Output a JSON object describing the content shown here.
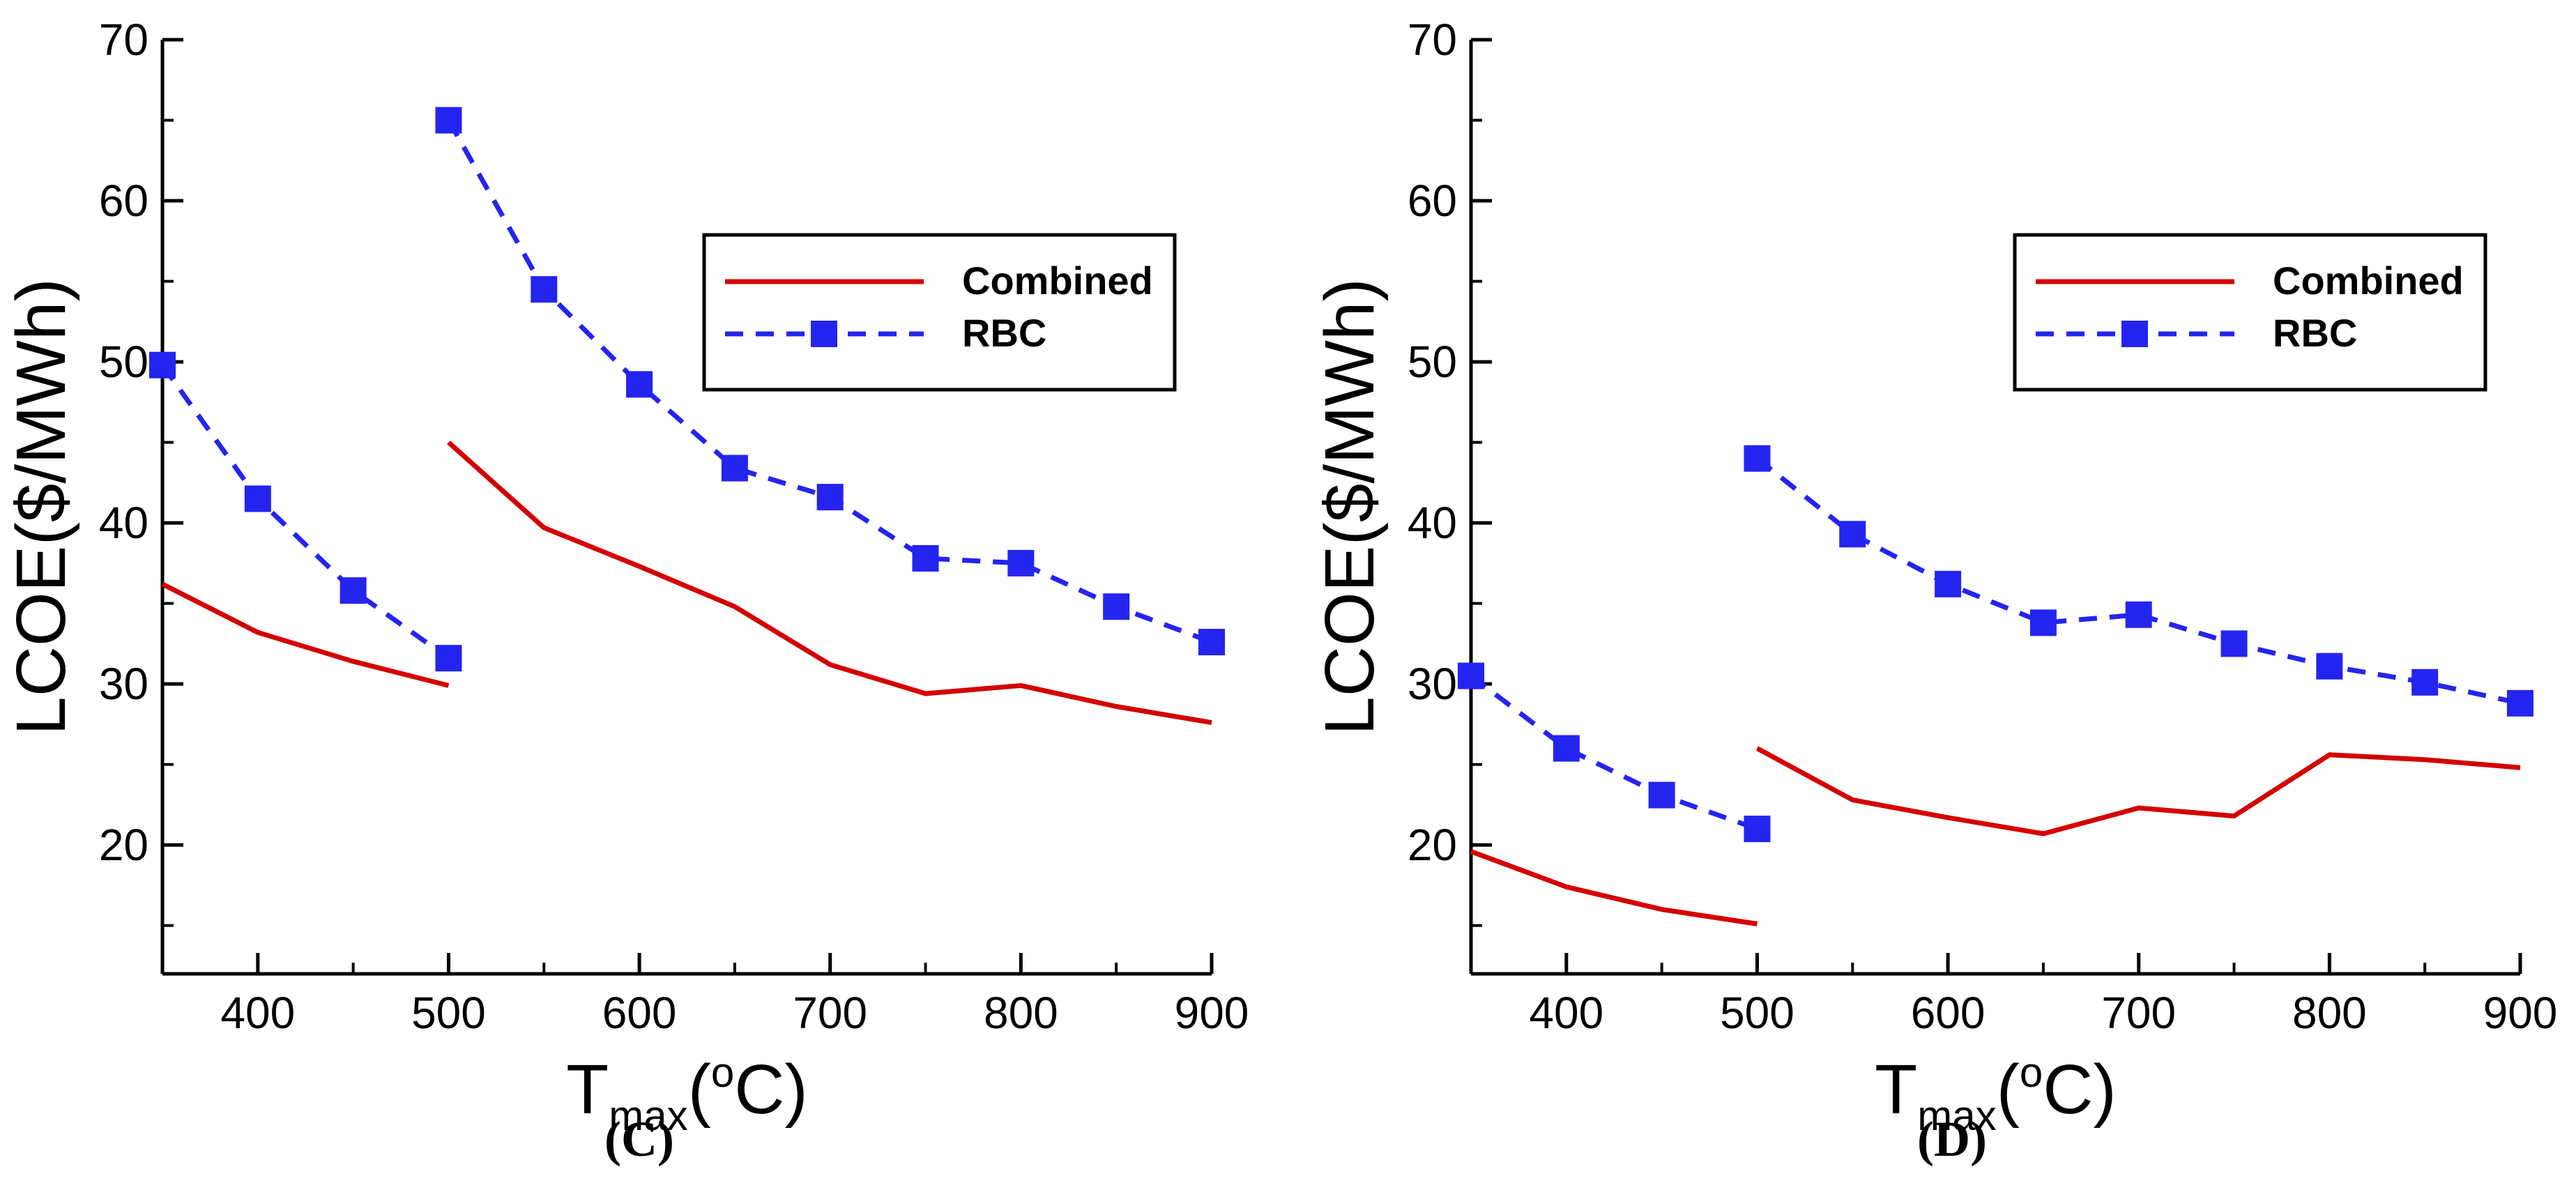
{
  "chart_data": [
    {
      "type": "line",
      "panel_label": "(C)",
      "xlabel_main": "T",
      "xlabel_sub": "max",
      "xlabel_unit_open": "(",
      "xlabel_unit_sup": "o",
      "xlabel_unit_close": "C)",
      "ylabel": "LCOE($/MWh)",
      "xlim": [
        350,
        900
      ],
      "ylim": [
        12,
        70
      ],
      "xticks": [
        400,
        500,
        600,
        700,
        800,
        900
      ],
      "yticks": [
        20,
        30,
        40,
        50,
        60,
        70
      ],
      "legend_position": "top-right",
      "series": [
        {
          "name": "Combined",
          "color": "#d40000",
          "style": "solid",
          "marker": "none",
          "segments": [
            {
              "x": [
                350,
                400,
                450,
                500
              ],
              "y": [
                36.2,
                33.2,
                31.4,
                29.9
              ]
            },
            {
              "x": [
                500,
                550,
                600,
                650,
                700,
                750,
                800,
                850,
                900
              ],
              "y": [
                45.0,
                39.7,
                37.3,
                34.8,
                31.2,
                29.4,
                29.9,
                28.6,
                27.6
              ]
            }
          ]
        },
        {
          "name": "RBC",
          "color": "#2424f0",
          "style": "dashed",
          "marker": "square",
          "segments": [
            {
              "x": [
                350,
                400,
                450,
                500
              ],
              "y": [
                49.8,
                41.5,
                35.8,
                31.6
              ]
            },
            {
              "x": [
                500,
                550,
                600,
                650,
                700,
                750,
                800,
                850,
                900
              ],
              "y": [
                65.0,
                54.5,
                48.6,
                43.4,
                41.6,
                37.8,
                37.5,
                34.8,
                32.6
              ]
            }
          ]
        }
      ]
    },
    {
      "type": "line",
      "panel_label": "(D)",
      "xlabel_main": "T",
      "xlabel_sub": "max",
      "xlabel_unit_open": "(",
      "xlabel_unit_sup": "o",
      "xlabel_unit_close": "C)",
      "ylabel": "LCOE($/MWh)",
      "xlim": [
        350,
        900
      ],
      "ylim": [
        12,
        70
      ],
      "xticks": [
        400,
        500,
        600,
        700,
        800,
        900
      ],
      "yticks": [
        20,
        30,
        40,
        50,
        60,
        70
      ],
      "legend_position": "top-right",
      "series": [
        {
          "name": "Combined",
          "color": "#d40000",
          "style": "solid",
          "marker": "none",
          "segments": [
            {
              "x": [
                350,
                400,
                450,
                500
              ],
              "y": [
                19.6,
                17.4,
                16.0,
                15.1
              ]
            },
            {
              "x": [
                500,
                550,
                600,
                650,
                700,
                750,
                800,
                850,
                900
              ],
              "y": [
                26.0,
                22.8,
                21.7,
                20.7,
                22.3,
                21.8,
                25.6,
                25.3,
                24.8
              ]
            }
          ]
        },
        {
          "name": "RBC",
          "color": "#2424f0",
          "style": "dashed",
          "marker": "square",
          "segments": [
            {
              "x": [
                350,
                400,
                450,
                500
              ],
              "y": [
                30.5,
                26.0,
                23.1,
                21.0
              ]
            },
            {
              "x": [
                500,
                550,
                600,
                650,
                700,
                750,
                800,
                850,
                900
              ],
              "y": [
                44.0,
                39.3,
                36.2,
                33.8,
                34.3,
                32.5,
                31.1,
                30.1,
                28.8
              ]
            }
          ]
        }
      ]
    }
  ]
}
